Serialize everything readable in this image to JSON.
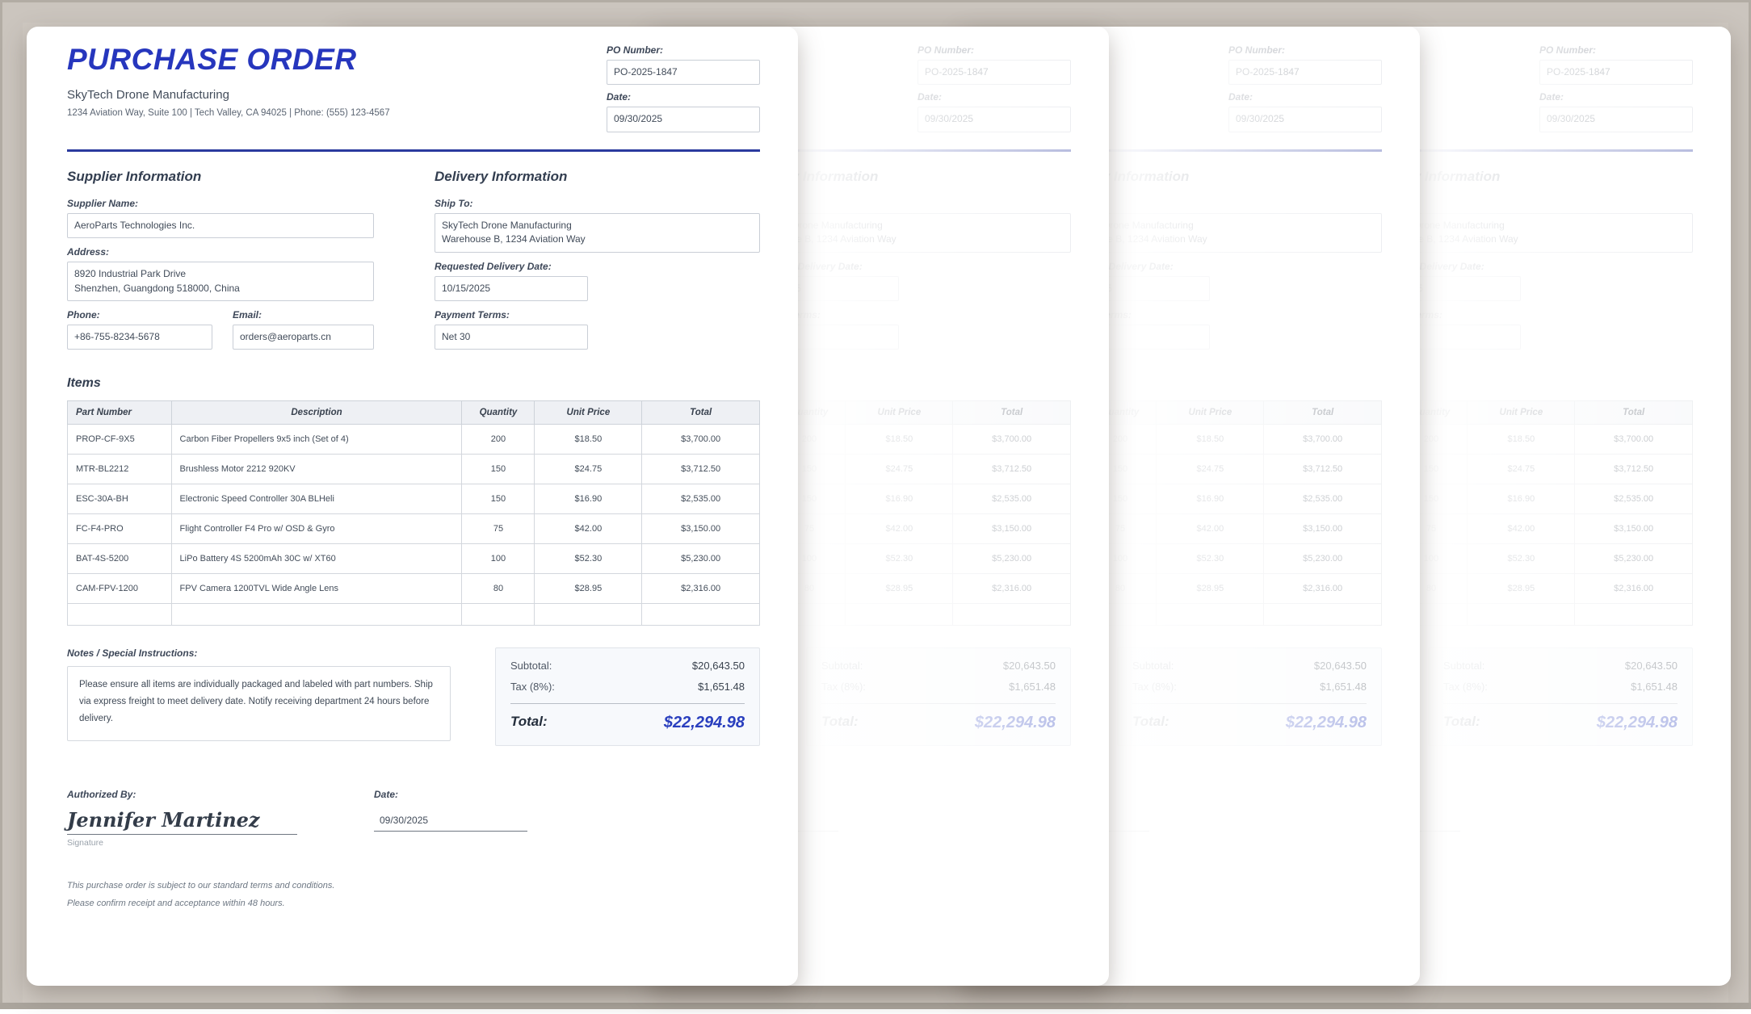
{
  "po": {
    "title": "PURCHASE ORDER",
    "company_name": "SkyTech Drone Manufacturing",
    "company_address": "1234 Aviation Way, Suite 100 | Tech Valley, CA 94025 | Phone: (555) 123-4567",
    "po_number_label": "PO Number:",
    "po_number_value": "PO-2025-1847",
    "date_label": "Date:",
    "date_value": "09/30/2025",
    "supplier": {
      "heading": "Supplier Information",
      "name_label": "Supplier Name:",
      "name_value": "AeroParts Technologies Inc.",
      "address_label": "Address:",
      "address_value": "8920 Industrial Park Drive\nShenzhen, Guangdong 518000, China",
      "phone_label": "Phone:",
      "phone_value": "+86-755-8234-5678",
      "email_label": "Email:",
      "email_value": "orders@aeroparts.cn"
    },
    "delivery": {
      "heading": "Delivery Information",
      "ship_to_label": "Ship To:",
      "ship_to_value": "SkyTech Drone Manufacturing\nWarehouse B, 1234 Aviation Way",
      "delivery_date_label": "Requested Delivery Date:",
      "delivery_date_value": "10/15/2025",
      "payment_terms_label": "Payment Terms:",
      "payment_terms_value": "Net 30"
    },
    "items": {
      "heading": "Items",
      "columns": [
        "Part Number",
        "Description",
        "Quantity",
        "Unit Price",
        "Total"
      ],
      "rows": [
        [
          "PROP-CF-9X5",
          "Carbon Fiber Propellers 9x5 inch (Set of 4)",
          "200",
          "$18.50",
          "$3,700.00"
        ],
        [
          "MTR-BL2212",
          "Brushless Motor 2212 920KV",
          "150",
          "$24.75",
          "$3,712.50"
        ],
        [
          "ESC-30A-BH",
          "Electronic Speed Controller 30A BLHeli",
          "150",
          "$16.90",
          "$2,535.00"
        ],
        [
          "FC-F4-PRO",
          "Flight Controller F4 Pro w/ OSD & Gyro",
          "75",
          "$42.00",
          "$3,150.00"
        ],
        [
          "BAT-4S-5200",
          "LiPo Battery 4S 5200mAh 30C w/ XT60",
          "100",
          "$52.30",
          "$5,230.00"
        ],
        [
          "CAM-FPV-1200",
          "FPV Camera 1200TVL Wide Angle Lens",
          "80",
          "$28.95",
          "$2,316.00"
        ]
      ]
    },
    "notes": {
      "label": "Notes / Special Instructions:",
      "value": "Please ensure all items are individually packaged and labeled with part numbers. Ship via express freight to meet delivery date. Notify receiving department 24 hours before delivery."
    },
    "totals": {
      "subtotal_label": "Subtotal:",
      "subtotal_value": "$20,643.50",
      "tax_label": "Tax (8%):",
      "tax_value": "$1,651.48",
      "total_label": "Total:",
      "total_value": "$22,294.98"
    },
    "authorization": {
      "authorized_by_label": "Authorized By:",
      "signature_value": "Jennifer Martinez",
      "signature_caption": "Signature",
      "date_label": "Date:",
      "date_value": "09/30/2025"
    },
    "footer_line1": "This purchase order is subject to our standard terms and conditions.",
    "footer_line2": "Please confirm receipt and acceptance within 48 hours.",
    "colors": {
      "accent_blue": "#2636bd",
      "divider_navy": "#2b3a9e",
      "total_blue": "#2a3fbe",
      "desk_background": "#cbc5be"
    }
  }
}
